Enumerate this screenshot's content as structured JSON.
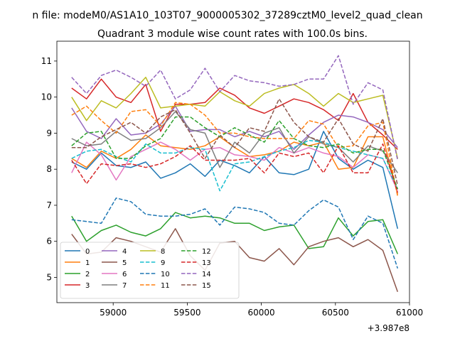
{
  "chart_data": {
    "type": "line",
    "suptitle": "n file: modeM0/AS1A10_103T07_9000005302_37289cztM0_level2_quad_clean",
    "title": "Quadrant 3 module wise count rates with 100.0s bins.",
    "xlabel": "",
    "ylabel": "",
    "offset_label": "+3.987e8",
    "xlim": [
      58620,
      61000
    ],
    "ylim": [
      4.3,
      11.55
    ],
    "xticks": [
      59000,
      59500,
      60000,
      60500,
      61000
    ],
    "yticks": [
      5,
      6,
      7,
      8,
      9,
      10,
      11
    ],
    "x": [
      58720,
      58820,
      58920,
      59020,
      59120,
      59220,
      59320,
      59420,
      59520,
      59620,
      59720,
      59820,
      59920,
      60020,
      60120,
      60220,
      60320,
      60420,
      60520,
      60620,
      60720,
      60820,
      60920
    ],
    "series": [
      {
        "name": "0",
        "color": "#1f77b4",
        "dash": "solid",
        "values": [
          8.2,
          8.0,
          8.45,
          8.1,
          8.05,
          8.2,
          7.75,
          7.9,
          8.15,
          7.8,
          8.25,
          8.1,
          7.9,
          8.35,
          7.9,
          7.85,
          8.0,
          9.05,
          8.3,
          8.0,
          8.25,
          8.05,
          6.35
        ]
      },
      {
        "name": "1",
        "color": "#ff7f0e",
        "dash": "solid",
        "values": [
          8.3,
          8.05,
          8.5,
          8.3,
          8.55,
          8.95,
          8.65,
          8.6,
          8.55,
          8.65,
          8.9,
          8.6,
          8.35,
          8.4,
          8.5,
          8.75,
          8.65,
          8.75,
          8.0,
          8.05,
          8.9,
          8.9,
          7.3
        ]
      },
      {
        "name": "2",
        "color": "#2ca02c",
        "dash": "solid",
        "values": [
          6.7,
          6.0,
          6.3,
          6.45,
          6.25,
          6.15,
          6.35,
          6.8,
          6.65,
          6.7,
          6.65,
          6.5,
          6.5,
          6.3,
          6.4,
          6.45,
          5.8,
          5.85,
          6.65,
          6.15,
          6.55,
          6.6,
          5.65
        ]
      },
      {
        "name": "3",
        "color": "#d62728",
        "dash": "solid",
        "values": [
          10.25,
          9.95,
          10.5,
          10.0,
          9.85,
          10.35,
          9.05,
          9.8,
          9.8,
          9.85,
          10.25,
          10.05,
          9.7,
          9.55,
          9.75,
          9.95,
          9.85,
          9.65,
          9.35,
          10.1,
          9.3,
          8.95,
          8.55
        ]
      },
      {
        "name": "4",
        "color": "#9467bd",
        "dash": "solid",
        "values": [
          9.7,
          9.05,
          8.85,
          9.4,
          8.95,
          9.0,
          9.25,
          9.75,
          9.05,
          9.1,
          9.1,
          8.9,
          9.05,
          8.9,
          9.05,
          8.55,
          8.95,
          9.3,
          9.5,
          9.45,
          9.3,
          9.1,
          8.6
        ]
      },
      {
        "name": "5",
        "color": "#8c564b",
        "dash": "solid",
        "values": [
          6.2,
          5.65,
          5.7,
          6.1,
          6.0,
          5.85,
          5.7,
          6.35,
          5.6,
          5.2,
          5.95,
          6.0,
          5.55,
          5.45,
          5.8,
          5.35,
          5.85,
          6.0,
          6.1,
          5.85,
          6.05,
          5.75,
          4.6
        ]
      },
      {
        "name": "6",
        "color": "#e377c2",
        "dash": "solid",
        "values": [
          7.9,
          8.75,
          8.4,
          7.7,
          8.35,
          8.55,
          8.75,
          8.55,
          8.25,
          8.55,
          8.6,
          8.4,
          8.35,
          8.25,
          8.6,
          8.45,
          8.6,
          8.45,
          8.35,
          8.05,
          8.4,
          8.3,
          7.4
        ]
      },
      {
        "name": "7",
        "color": "#7f7f7f",
        "dash": "solid",
        "values": [
          8.85,
          8.65,
          8.7,
          9.05,
          8.8,
          8.85,
          9.15,
          9.6,
          9.1,
          9.0,
          8.05,
          8.75,
          8.45,
          9.0,
          9.15,
          8.45,
          8.9,
          8.7,
          8.6,
          8.2,
          8.65,
          8.5,
          7.9
        ]
      },
      {
        "name": "8",
        "color": "#bcbd22",
        "dash": "solid",
        "values": [
          10.0,
          9.35,
          9.9,
          9.7,
          10.1,
          10.55,
          9.7,
          9.75,
          9.8,
          9.75,
          10.15,
          9.9,
          9.75,
          10.1,
          10.25,
          10.35,
          10.1,
          9.75,
          10.1,
          9.85,
          9.95,
          10.05,
          8.3
        ]
      },
      {
        "name": "9",
        "color": "#17becf",
        "dash": "dashed",
        "values": [
          8.3,
          8.5,
          8.55,
          8.35,
          8.2,
          8.7,
          8.45,
          8.45,
          8.6,
          8.55,
          7.4,
          8.15,
          8.2,
          8.35,
          8.5,
          8.6,
          8.8,
          8.75,
          8.6,
          8.5,
          8.4,
          8.3,
          7.45
        ]
      },
      {
        "name": "10",
        "color": "#1f77b4",
        "dash": "dashed",
        "values": [
          6.6,
          6.55,
          6.5,
          7.2,
          7.1,
          6.75,
          6.7,
          6.7,
          6.75,
          6.9,
          6.45,
          6.95,
          6.9,
          6.8,
          6.5,
          6.45,
          6.85,
          7.15,
          6.95,
          6.05,
          6.7,
          6.5,
          5.25
        ]
      },
      {
        "name": "11",
        "color": "#ff7f0e",
        "dash": "dashed",
        "values": [
          9.5,
          9.75,
          9.35,
          9.0,
          9.6,
          9.65,
          9.2,
          9.85,
          9.8,
          9.5,
          9.0,
          9.0,
          8.9,
          8.85,
          8.85,
          8.85,
          9.35,
          9.25,
          8.6,
          8.65,
          9.2,
          9.3,
          7.25
        ]
      },
      {
        "name": "12",
        "color": "#2ca02c",
        "dash": "dashed",
        "values": [
          8.65,
          9.0,
          9.05,
          8.3,
          8.3,
          8.65,
          8.85,
          9.45,
          9.45,
          9.15,
          8.9,
          9.15,
          8.95,
          8.75,
          9.35,
          8.85,
          8.65,
          8.6,
          8.7,
          8.45,
          8.55,
          8.55,
          7.45
        ]
      },
      {
        "name": "13",
        "color": "#d62728",
        "dash": "dashed",
        "values": [
          8.25,
          7.6,
          8.15,
          8.1,
          8.15,
          8.05,
          8.15,
          8.35,
          8.65,
          8.25,
          8.25,
          8.25,
          8.3,
          7.9,
          8.45,
          8.35,
          8.45,
          7.9,
          8.65,
          7.9,
          7.9,
          8.7,
          7.35
        ]
      },
      {
        "name": "14",
        "color": "#9467bd",
        "dash": "dashed",
        "values": [
          10.55,
          10.1,
          10.6,
          10.75,
          10.55,
          10.3,
          10.75,
          9.95,
          10.2,
          10.8,
          10.15,
          10.6,
          10.45,
          10.4,
          10.3,
          10.35,
          10.5,
          10.5,
          11.15,
          9.8,
          10.4,
          10.2,
          8.25
        ]
      },
      {
        "name": "15",
        "color": "#8c564b",
        "dash": "dashed",
        "values": [
          8.6,
          8.6,
          8.9,
          9.1,
          9.3,
          9.0,
          9.45,
          9.65,
          9.0,
          8.3,
          8.95,
          8.6,
          9.15,
          9.05,
          9.95,
          9.3,
          8.9,
          8.75,
          9.4,
          8.7,
          8.5,
          9.4,
          7.55
        ]
      }
    ],
    "legend_position": "lower-left",
    "legend_columns": 4,
    "grid": false
  }
}
